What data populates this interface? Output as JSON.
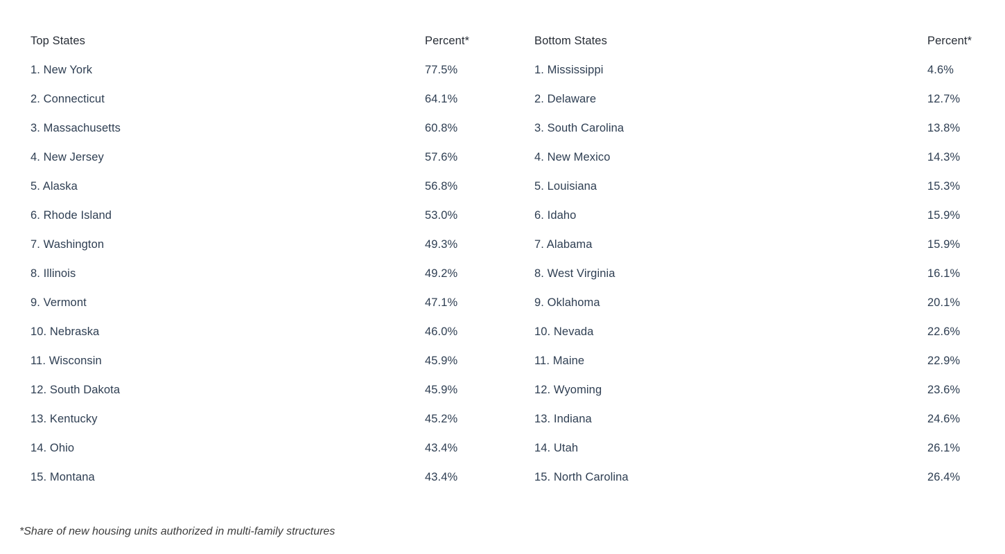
{
  "chart_data": {
    "type": "table",
    "footnote": "*Share of new housing units authorized in multi-family structures",
    "tables": [
      {
        "title": "Top States",
        "value_column": "Percent*",
        "states": [
          "New York",
          "Connecticut",
          "Massachusetts",
          "New Jersey",
          "Alaska",
          "Rhode Island",
          "Washington",
          "Illinois",
          "Vermont",
          "Nebraska",
          "Wisconsin",
          "South Dakota",
          "Kentucky",
          "Ohio",
          "Montana"
        ],
        "values": [
          77.5,
          64.1,
          60.8,
          57.6,
          56.8,
          53.0,
          49.3,
          49.2,
          47.1,
          46.0,
          45.9,
          45.9,
          45.2,
          43.4,
          43.4
        ]
      },
      {
        "title": "Bottom States",
        "value_column": "Percent*",
        "states": [
          "Mississippi",
          "Delaware",
          "South Carolina",
          "New Mexico",
          "Louisiana",
          "Idaho",
          "Alabama",
          "West Virginia",
          "Oklahoma",
          "Nevada",
          "Maine",
          "Wyoming",
          "Indiana",
          "Utah",
          "North Carolina"
        ],
        "values": [
          4.6,
          12.7,
          13.8,
          14.3,
          15.3,
          15.9,
          15.9,
          16.1,
          20.1,
          22.6,
          22.9,
          23.6,
          24.6,
          26.1,
          26.4
        ]
      }
    ]
  },
  "display": {
    "left": {
      "header": "Top States",
      "percent_header": "Percent*",
      "rows": [
        {
          "label": "1. New York",
          "percent": "77.5%"
        },
        {
          "label": "2. Connecticut",
          "percent": "64.1%"
        },
        {
          "label": "3. Massachusetts",
          "percent": "60.8%"
        },
        {
          "label": "4. New Jersey",
          "percent": "57.6%"
        },
        {
          "label": "5. Alaska",
          "percent": "56.8%"
        },
        {
          "label": "6. Rhode Island",
          "percent": "53.0%"
        },
        {
          "label": "7. Washington",
          "percent": "49.3%"
        },
        {
          "label": "8. Illinois",
          "percent": "49.2%"
        },
        {
          "label": "9. Vermont",
          "percent": "47.1%"
        },
        {
          "label": "10. Nebraska",
          "percent": "46.0%"
        },
        {
          "label": "11. Wisconsin",
          "percent": "45.9%"
        },
        {
          "label": "12. South Dakota",
          "percent": "45.9%"
        },
        {
          "label": "13. Kentucky",
          "percent": "45.2%"
        },
        {
          "label": "14. Ohio",
          "percent": "43.4%"
        },
        {
          "label": "15. Montana",
          "percent": "43.4%"
        }
      ]
    },
    "right": {
      "header": "Bottom States",
      "percent_header": "Percent*",
      "rows": [
        {
          "label": "1. Mississippi",
          "percent": "4.6%"
        },
        {
          "label": "2. Delaware",
          "percent": "12.7%"
        },
        {
          "label": "3. South Carolina",
          "percent": "13.8%"
        },
        {
          "label": "4. New Mexico",
          "percent": "14.3%"
        },
        {
          "label": "5. Louisiana",
          "percent": "15.3%"
        },
        {
          "label": "6. Idaho",
          "percent": "15.9%"
        },
        {
          "label": "7. Alabama",
          "percent": "15.9%"
        },
        {
          "label": "8. West Virginia",
          "percent": "16.1%"
        },
        {
          "label": "9. Oklahoma",
          "percent": "20.1%"
        },
        {
          "label": "10. Nevada",
          "percent": "22.6%"
        },
        {
          "label": "11. Maine",
          "percent": "22.9%"
        },
        {
          "label": "12. Wyoming",
          "percent": "23.6%"
        },
        {
          "label": "13. Indiana",
          "percent": "24.6%"
        },
        {
          "label": "14. Utah",
          "percent": "26.1%"
        },
        {
          "label": "15. North Carolina",
          "percent": "26.4%"
        }
      ]
    },
    "footnote": "*Share of new housing units authorized in multi-family structures"
  },
  "colors": {
    "background": "#ffffff",
    "row_text": "#2e3e52",
    "header_text": "#272d36",
    "footnote_text": "#3c3c3c"
  }
}
